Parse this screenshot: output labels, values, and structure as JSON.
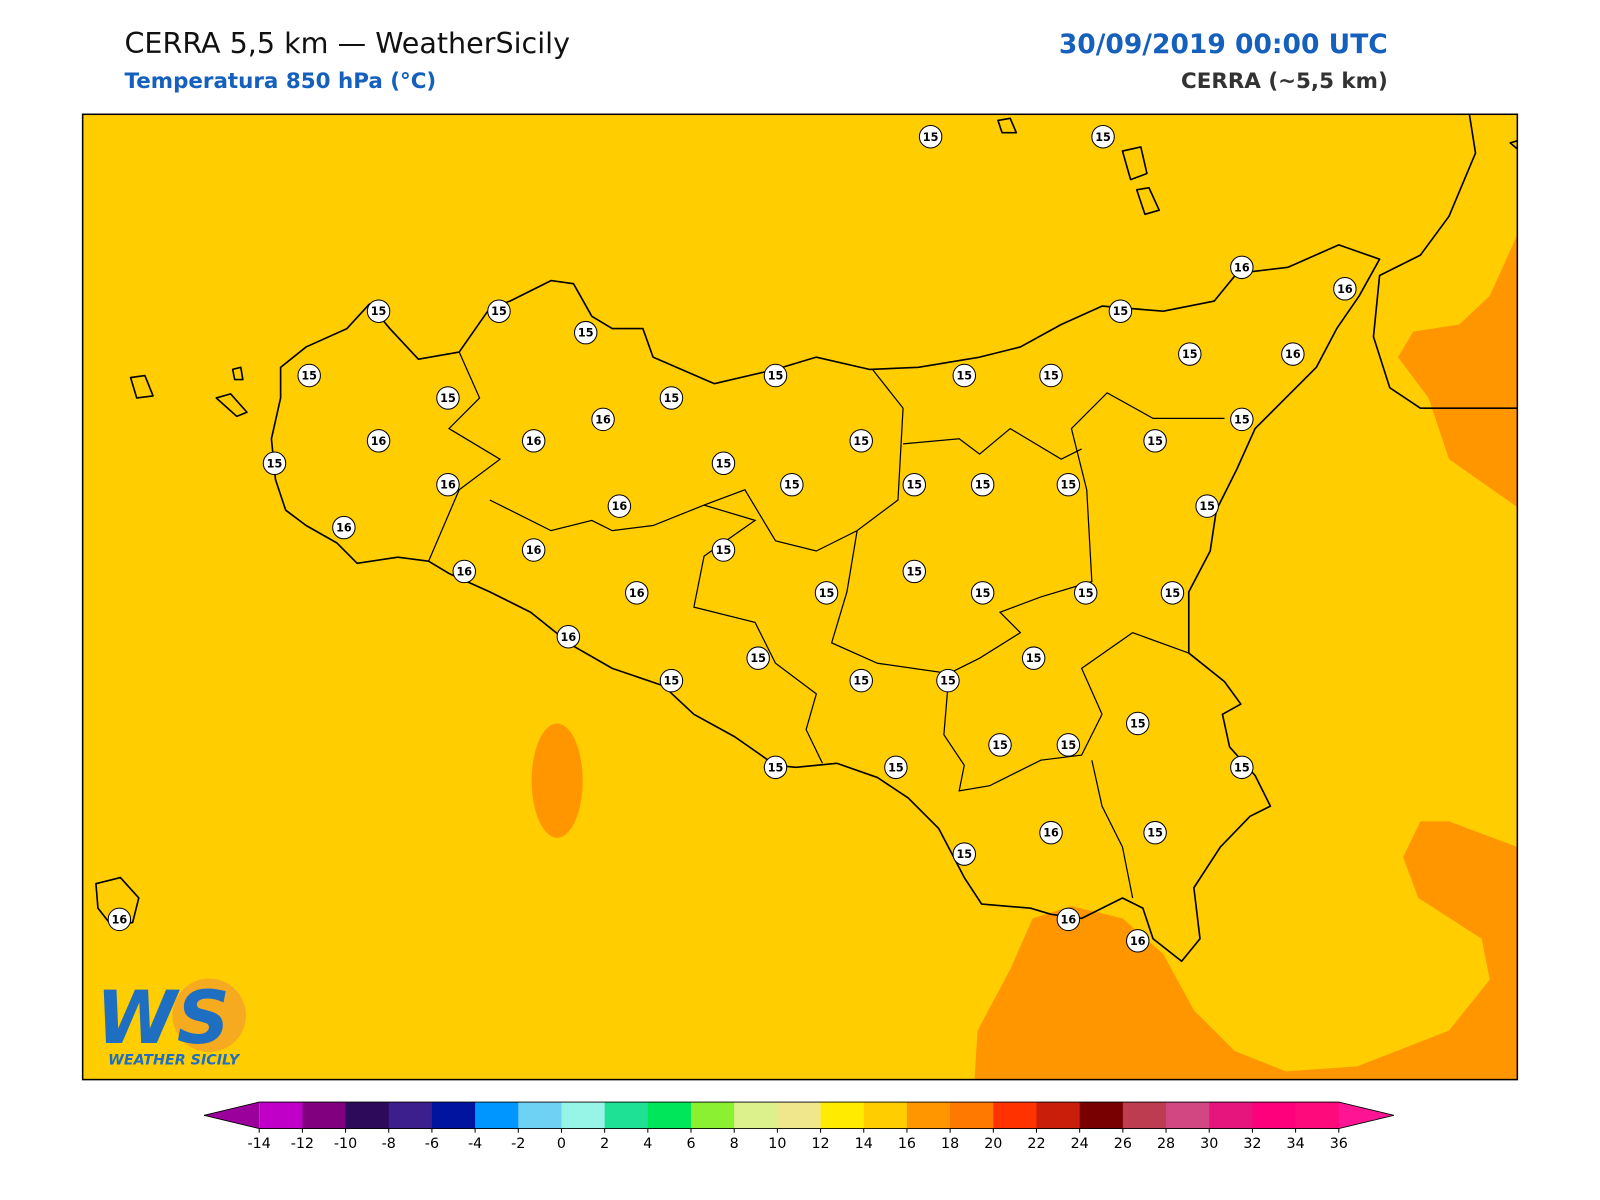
{
  "header": {
    "title": "CERRA 5,5 km — WeatherSicily",
    "subtitle": "Temperatura 850 hPa (°C)",
    "date": "30/09/2019 00:00 UTC",
    "model": "CERRA (~5,5 km)"
  },
  "logo": {
    "mark": "WS",
    "name": "WEATHER SICILY"
  },
  "labels": [
    15,
    15,
    16,
    16,
    15,
    15,
    15,
    15,
    15,
    16,
    15,
    15,
    15,
    15,
    15,
    15,
    16,
    15,
    16,
    16,
    15,
    15,
    15,
    15,
    16,
    15,
    15,
    15,
    15,
    16,
    15,
    16,
    16,
    15,
    16,
    15,
    16,
    15,
    15,
    15,
    15,
    16,
    15,
    15,
    15,
    15,
    15,
    15,
    15,
    15,
    15,
    15,
    15,
    16,
    15,
    15,
    16,
    16,
    16
  ],
  "colorbar": {
    "ticks": [
      -14,
      -12,
      -10,
      -8,
      -6,
      -4,
      -2,
      0,
      2,
      4,
      6,
      8,
      10,
      12,
      14,
      16,
      18,
      20,
      22,
      24,
      26,
      28,
      30,
      32,
      34,
      36
    ],
    "colors": [
      "#9c009c",
      "#c000c8",
      "#800080",
      "#2d0a5a",
      "#3c1e8c",
      "#0014a0",
      "#0096ff",
      "#6ed2f5",
      "#96f5e6",
      "#1ee196",
      "#00e65a",
      "#8cf032",
      "#dcf08c",
      "#f0e68c",
      "#ffeb00",
      "#ffcd00",
      "#ff9600",
      "#ff7800",
      "#ff3200",
      "#c81e0a",
      "#780000",
      "#be3c50",
      "#d24682",
      "#e6147d",
      "#ff007d",
      "#ff0a7d",
      "#ff1493"
    ]
  }
}
